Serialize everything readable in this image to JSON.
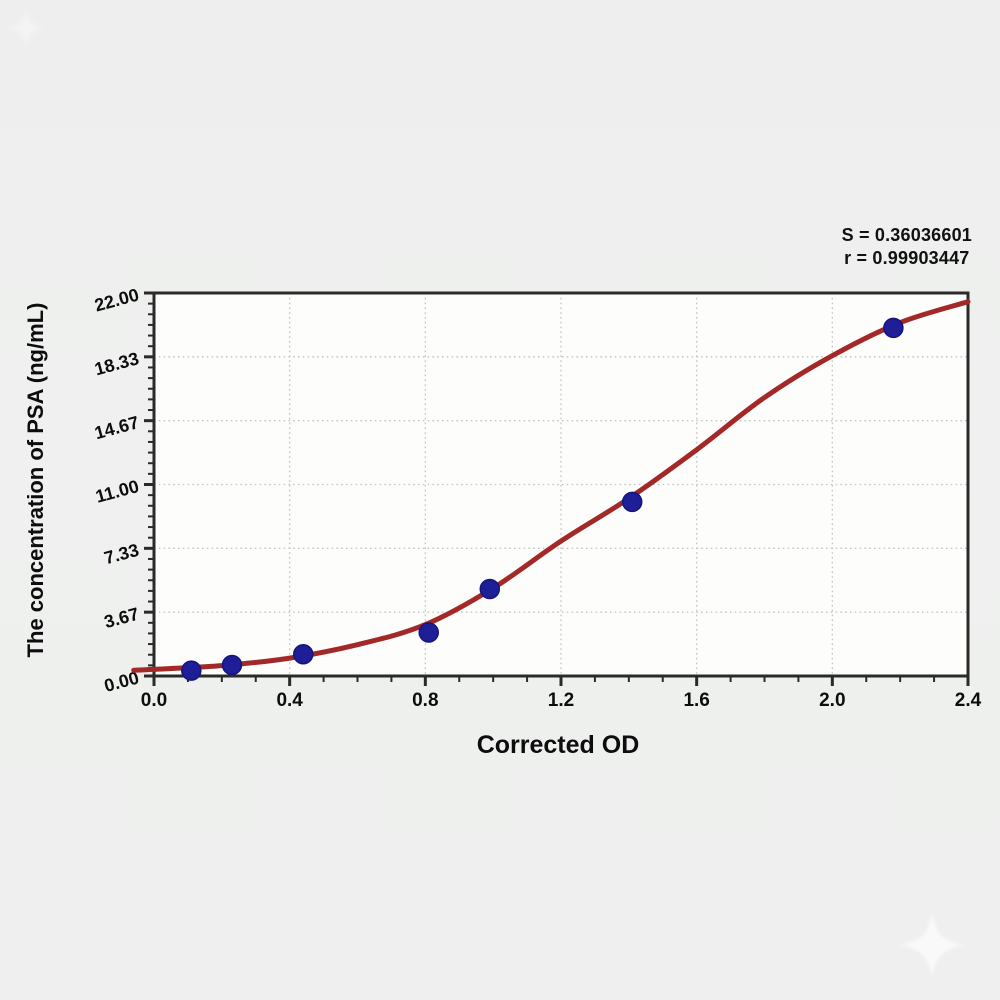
{
  "chart_data": {
    "type": "scatter",
    "title": "",
    "xlabel": "Corrected OD",
    "ylabel": "The concentration of PSA (ng/mL)",
    "xlim": [
      0,
      2.4
    ],
    "ylim": [
      0,
      22
    ],
    "x_tick_labels": [
      "0.0",
      "0.4",
      "0.8",
      "1.2",
      "1.6",
      "2.0",
      "2.4"
    ],
    "y_tick_labels": [
      "0.00",
      "3.67",
      "7.33",
      "11.00",
      "14.67",
      "18.33",
      "22.00"
    ],
    "x_minor_step": 0.1,
    "y_minor_per_major": 6,
    "grid": "dotted-at-major-ticks",
    "legend_position": "none",
    "annotation": {
      "s_label": "S = 0.36036601",
      "r_label": "r = 0.99903447"
    },
    "points": [
      {
        "x": 0.11,
        "y": 0.31
      },
      {
        "x": 0.23,
        "y": 0.63
      },
      {
        "x": 0.44,
        "y": 1.25
      },
      {
        "x": 0.81,
        "y": 2.5
      },
      {
        "x": 0.99,
        "y": 5.0
      },
      {
        "x": 1.41,
        "y": 10.0
      },
      {
        "x": 2.18,
        "y": 20.0
      }
    ],
    "fit_curve": [
      [
        -0.06,
        0.33
      ],
      [
        0.2,
        0.6
      ],
      [
        0.4,
        1.03
      ],
      [
        0.6,
        1.8
      ],
      [
        0.8,
        2.95
      ],
      [
        1.0,
        5.05
      ],
      [
        1.2,
        7.75
      ],
      [
        1.4,
        10.2
      ],
      [
        1.6,
        13.0
      ],
      [
        1.8,
        16.0
      ],
      [
        2.0,
        18.4
      ],
      [
        2.2,
        20.3
      ],
      [
        2.4,
        21.5
      ]
    ],
    "colors": {
      "curve": "#a32828",
      "point_fill": "#1e1e96",
      "point_edge": "#15157d",
      "grid": "#c3c3c3",
      "axis": "#2a2a2a",
      "text": "#0d0d0d",
      "plot_bg": "#fdfdfc",
      "page_bg": "#eeefee"
    }
  }
}
